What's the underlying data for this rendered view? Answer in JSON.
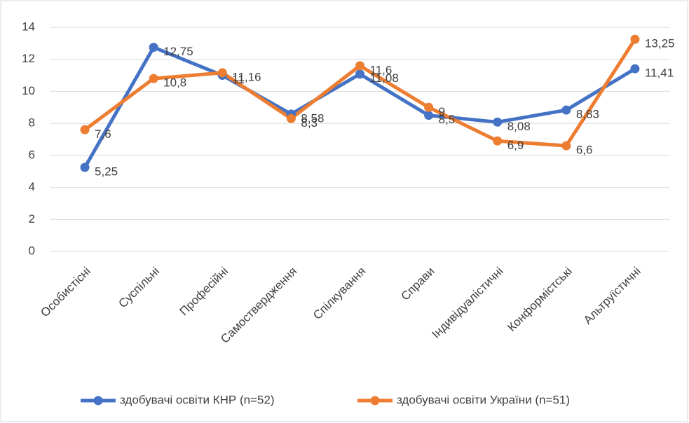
{
  "chart_data": {
    "type": "line",
    "categories": [
      "Особистісні",
      "Суспільні",
      "Професійні",
      "Самоствердження",
      "Спілкування",
      "Справи",
      "Індивідуалістичні",
      "Конформістські",
      "Альтруїстичні"
    ],
    "series": [
      {
        "name": "здобувачі освіти КНР (n=52)",
        "color": "#4472c4",
        "values": [
          5.25,
          12.75,
          11,
          8.58,
          11.08,
          8.5,
          8.08,
          8.83,
          11.41
        ],
        "value_labels": [
          "5,25",
          "12,75",
          "11",
          "8,58",
          "11,08",
          "8,5",
          "8,08",
          "8,83",
          "11,41"
        ]
      },
      {
        "name": "здобувачі освіти України (n=51)",
        "color": "#ed7d31",
        "values": [
          7.6,
          10.8,
          11.16,
          8.3,
          11.6,
          9,
          6.9,
          6.6,
          13.25
        ],
        "value_labels": [
          "7,6",
          "10,8",
          "11,16",
          "8,3",
          "11,6",
          "9",
          "6,9",
          "6,6",
          "13,25"
        ]
      }
    ],
    "ylim": [
      0,
      14
    ],
    "yticks": [
      0,
      2,
      4,
      6,
      8,
      10,
      12,
      14
    ],
    "grid": true,
    "legend": "bottom"
  }
}
